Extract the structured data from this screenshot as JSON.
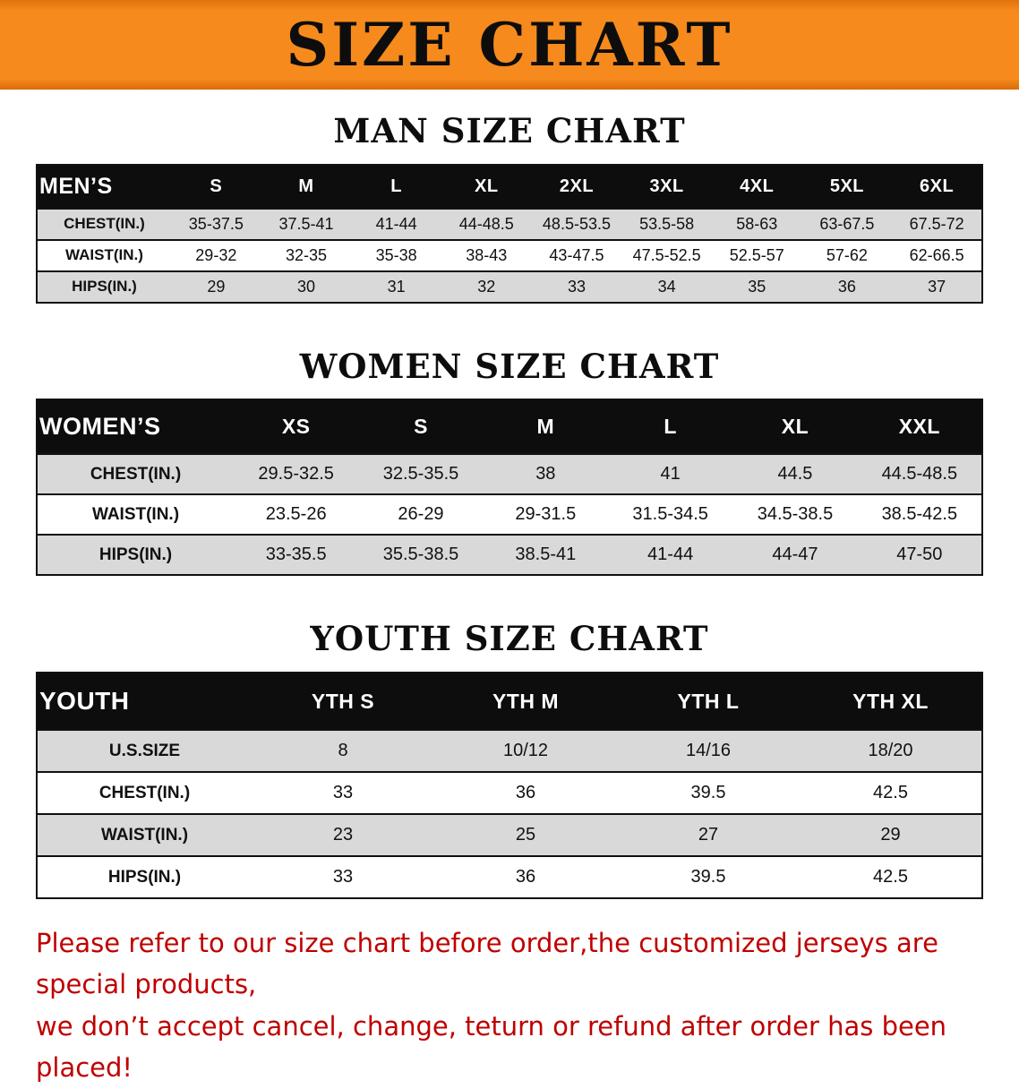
{
  "banner": {
    "title": "SIZE CHART"
  },
  "sections": [
    {
      "heading": "MAN SIZE CHART",
      "table": {
        "label": "MEN’S",
        "columns": [
          "S",
          "M",
          "L",
          "XL",
          "2XL",
          "3XL",
          "4XL",
          "5XL",
          "6XL"
        ],
        "rows": [
          {
            "label": "CHEST(IN.)",
            "values": [
              "35-37.5",
              "37.5-41",
              "41-44",
              "44-48.5",
              "48.5-53.5",
              "53.5-58",
              "58-63",
              "63-67.5",
              "67.5-72"
            ]
          },
          {
            "label": "WAIST(IN.)",
            "values": [
              "29-32",
              "32-35",
              "35-38",
              "38-43",
              "43-47.5",
              "47.5-52.5",
              "52.5-57",
              "57-62",
              "62-66.5"
            ]
          },
          {
            "label": "HIPS(IN.)",
            "values": [
              "29",
              "30",
              "31",
              "32",
              "33",
              "34",
              "35",
              "36",
              "37"
            ]
          }
        ]
      }
    },
    {
      "heading": "WOMEN SIZE CHART",
      "table": {
        "label": "WOMEN’S",
        "columns": [
          "XS",
          "S",
          "M",
          "L",
          "XL",
          "XXL"
        ],
        "rows": [
          {
            "label": "CHEST(IN.)",
            "values": [
              "29.5-32.5",
              "32.5-35.5",
              "38",
              "41",
              "44.5",
              "44.5-48.5"
            ]
          },
          {
            "label": "WAIST(IN.)",
            "values": [
              "23.5-26",
              "26-29",
              "29-31.5",
              "31.5-34.5",
              "34.5-38.5",
              "38.5-42.5"
            ]
          },
          {
            "label": "HIPS(IN.)",
            "values": [
              "33-35.5",
              "35.5-38.5",
              "38.5-41",
              "41-44",
              "44-47",
              "47-50"
            ]
          }
        ]
      }
    },
    {
      "heading": "YOUTH SIZE CHART",
      "table": {
        "label": "YOUTH",
        "columns": [
          "YTH S",
          "YTH M",
          "YTH L",
          "YTH XL"
        ],
        "rows": [
          {
            "label": "U.S.SIZE",
            "values": [
              "8",
              "10/12",
              "14/16",
              "18/20"
            ]
          },
          {
            "label": "CHEST(IN.)",
            "values": [
              "33",
              "36",
              "39.5",
              "42.5"
            ]
          },
          {
            "label": "WAIST(IN.)",
            "values": [
              "23",
              "25",
              "27",
              "29"
            ]
          },
          {
            "label": "HIPS(IN.)",
            "values": [
              "33",
              "36",
              "39.5",
              "42.5"
            ]
          }
        ]
      }
    }
  ],
  "disclaimer": {
    "line1": "Please refer to our size chart before order,the customized jerseys are special products,",
    "line2": "we don’t accept cancel, change, teturn or refund after order has been placed!"
  },
  "colors": {
    "banner_orange": "#f6861f",
    "table_header_black": "#0d0d0d",
    "row_shade_gray": "#d9d9d9",
    "disclaimer_red": "#c00000"
  }
}
